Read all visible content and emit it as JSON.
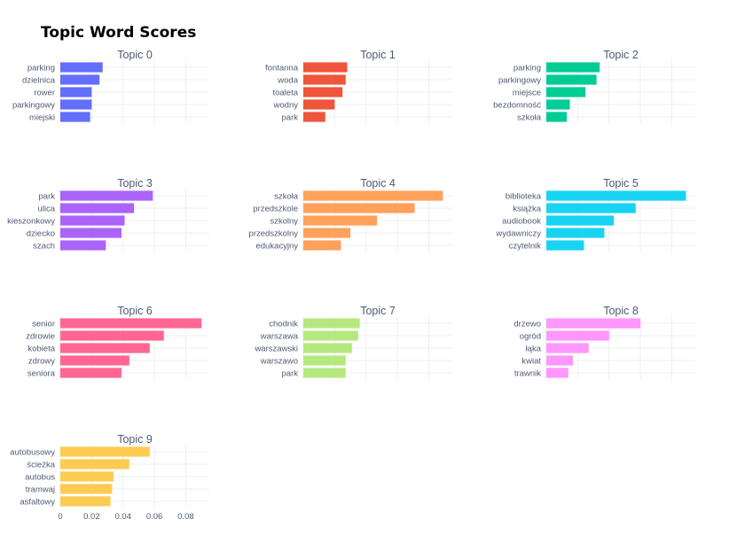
{
  "chart_data": {
    "type": "bar",
    "orientation": "horizontal",
    "title": "Topic Word Scores",
    "xlim": [
      0,
      0.095
    ],
    "xticks": [
      0,
      0.02,
      0.04,
      0.06,
      0.08
    ],
    "xtick_labels": [
      "0",
      "0.02",
      "0.04",
      "0.06",
      "0.08"
    ],
    "grid": true,
    "subplots": [
      {
        "title": "Topic 0",
        "color": "#636efa",
        "categories": [
          "parking",
          "dzielnica",
          "rower",
          "parkingowy",
          "miejski"
        ],
        "values": [
          0.027,
          0.025,
          0.02,
          0.02,
          0.019
        ]
      },
      {
        "title": "Topic 1",
        "color": "#ef553b",
        "categories": [
          "fontanna",
          "woda",
          "toaleta",
          "wodny",
          "park"
        ],
        "values": [
          0.028,
          0.027,
          0.025,
          0.02,
          0.014
        ]
      },
      {
        "title": "Topic 2",
        "color": "#00cc96",
        "categories": [
          "parking",
          "parkingowy",
          "miejsce",
          "bezdomność",
          "szkoła"
        ],
        "values": [
          0.034,
          0.032,
          0.025,
          0.015,
          0.013
        ]
      },
      {
        "title": "Topic 3",
        "color": "#ab63fa",
        "categories": [
          "park",
          "ulica",
          "kieszonkowy",
          "dziecko",
          "szach"
        ],
        "values": [
          0.059,
          0.047,
          0.041,
          0.039,
          0.029
        ]
      },
      {
        "title": "Topic 4",
        "color": "#ffa15a",
        "categories": [
          "szkoła",
          "przedszkole",
          "szkolny",
          "przedszkolny",
          "edukacyjny"
        ],
        "values": [
          0.089,
          0.071,
          0.047,
          0.03,
          0.024
        ]
      },
      {
        "title": "Topic 5",
        "color": "#19d3f3",
        "categories": [
          "biblioteka",
          "książka",
          "audiobook",
          "wydawniczy",
          "czytelnik"
        ],
        "values": [
          0.089,
          0.057,
          0.043,
          0.037,
          0.024
        ]
      },
      {
        "title": "Topic 6",
        "color": "#ff6692",
        "categories": [
          "senior",
          "zdrowie",
          "kobieta",
          "zdrowy",
          "seniora"
        ],
        "values": [
          0.09,
          0.066,
          0.057,
          0.044,
          0.039
        ]
      },
      {
        "title": "Topic 7",
        "color": "#b6e880",
        "categories": [
          "chodnik",
          "warszawa",
          "warszawski",
          "warszawo",
          "park"
        ],
        "values": [
          0.036,
          0.035,
          0.031,
          0.027,
          0.027
        ]
      },
      {
        "title": "Topic 8",
        "color": "#ff97ff",
        "categories": [
          "drzewo",
          "ogród",
          "łąka",
          "kwiat",
          "trawnik"
        ],
        "values": [
          0.06,
          0.04,
          0.027,
          0.017,
          0.014
        ]
      },
      {
        "title": "Topic 9",
        "color": "#fecb52",
        "categories": [
          "autobusowy",
          "ścieżka",
          "autobus",
          "tramwaj",
          "asfaltowy"
        ],
        "values": [
          0.057,
          0.044,
          0.034,
          0.033,
          0.032
        ]
      }
    ]
  }
}
